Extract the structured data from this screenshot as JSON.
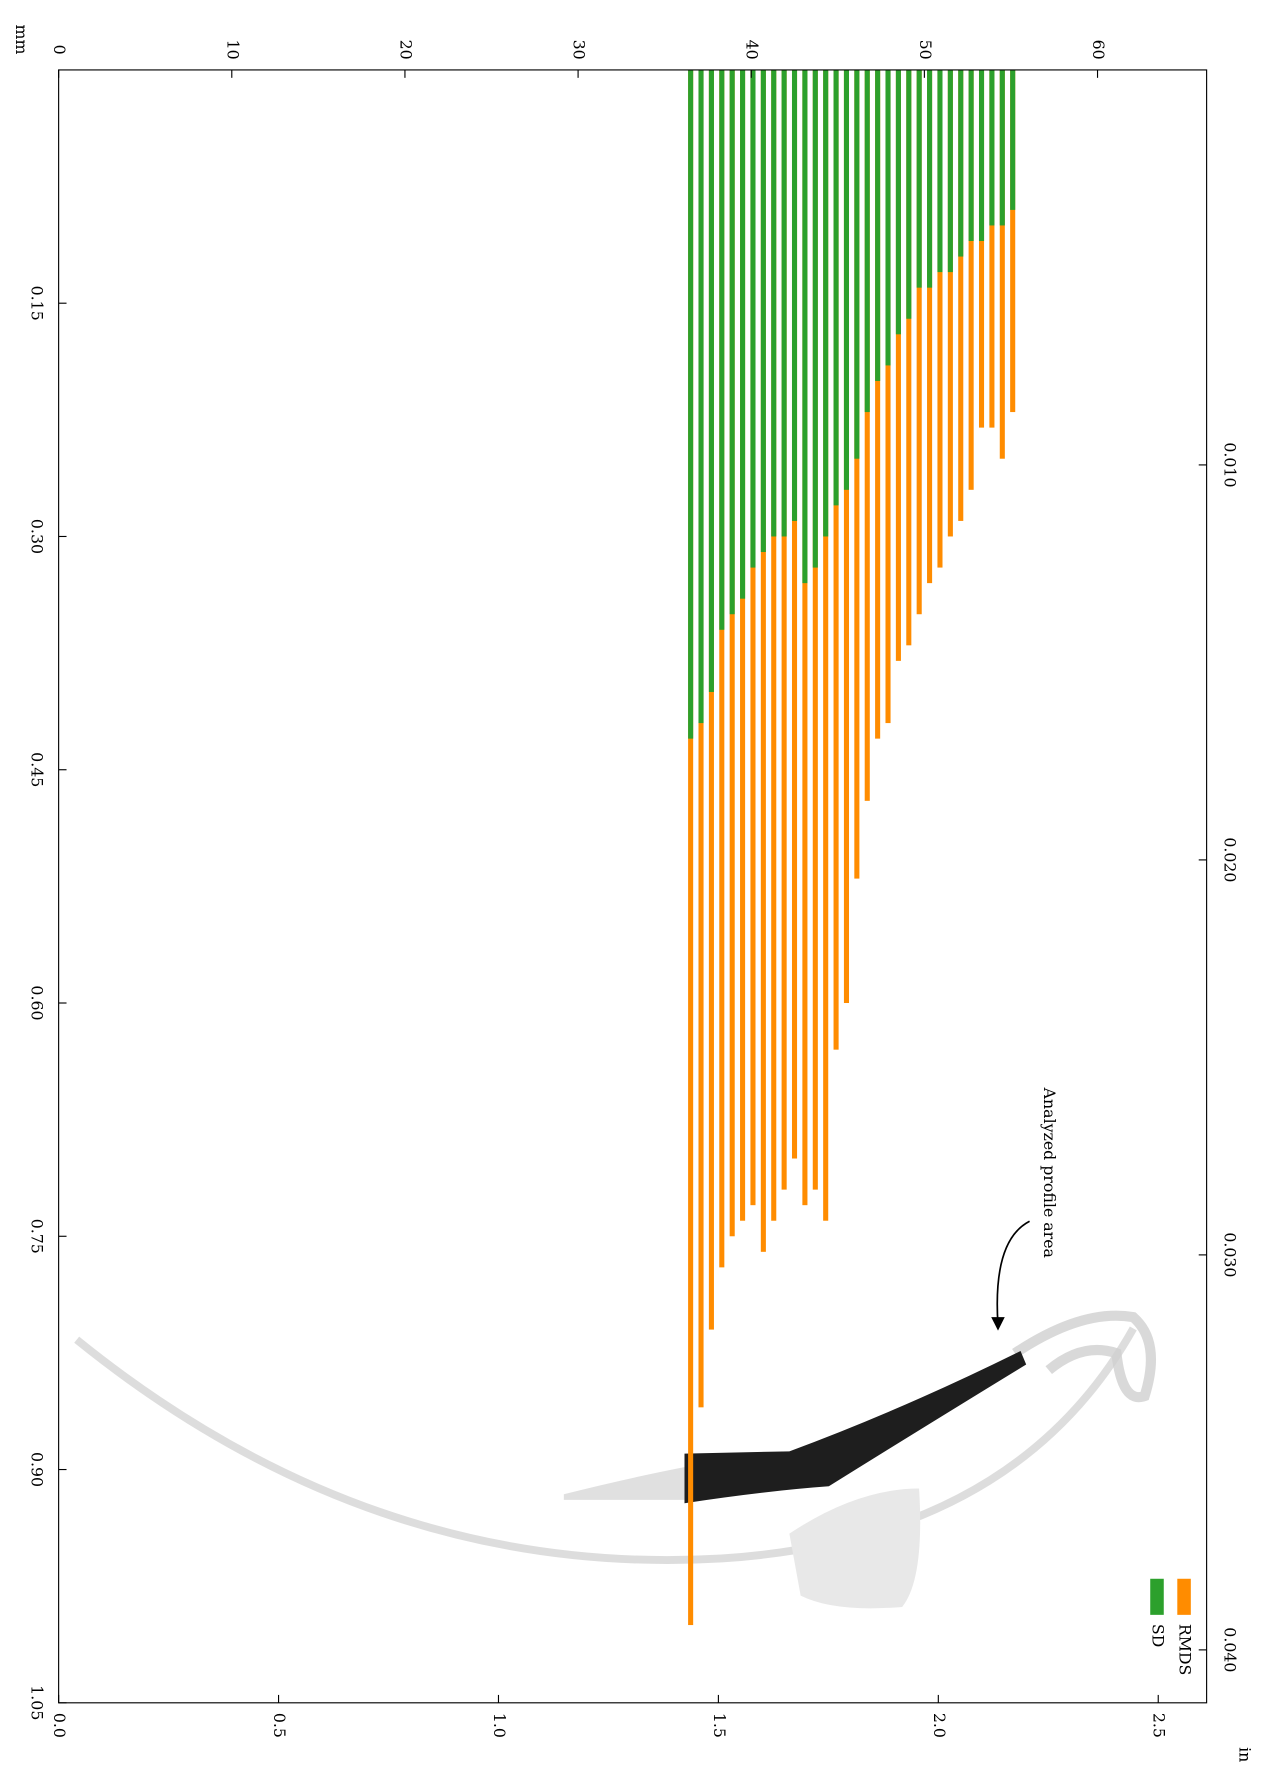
{
  "chart_data": {
    "type": "bar",
    "x_axis_label": "mm",
    "x2_axis_label": "in",
    "annotation": "Analyzed profile area",
    "x": [
      36.5,
      37.1,
      37.7,
      38.3,
      38.9,
      39.5,
      40.1,
      40.7,
      41.3,
      41.9,
      42.5,
      43.1,
      43.7,
      44.3,
      44.9,
      45.5,
      46.1,
      46.7,
      47.3,
      47.9,
      48.5,
      49.1,
      49.7,
      50.3,
      50.9,
      51.5,
      52.1,
      52.7,
      53.3,
      53.9,
      54.5,
      55.1
    ],
    "series": [
      {
        "name": "RMDS",
        "color": "#ff8c00",
        "values": [
          1.0,
          0.86,
          0.81,
          0.77,
          0.75,
          0.74,
          0.73,
          0.76,
          0.74,
          0.72,
          0.7,
          0.73,
          0.72,
          0.74,
          0.63,
          0.6,
          0.52,
          0.47,
          0.43,
          0.42,
          0.38,
          0.37,
          0.35,
          0.33,
          0.32,
          0.3,
          0.29,
          0.27,
          0.23,
          0.23,
          0.25,
          0.22
        ]
      },
      {
        "name": "SD",
        "color": "#2ca02c",
        "values": [
          0.43,
          0.42,
          0.4,
          0.36,
          0.35,
          0.34,
          0.32,
          0.31,
          0.3,
          0.3,
          0.29,
          0.33,
          0.32,
          0.3,
          0.28,
          0.27,
          0.25,
          0.22,
          0.2,
          0.19,
          0.17,
          0.16,
          0.14,
          0.14,
          0.13,
          0.13,
          0.12,
          0.11,
          0.11,
          0.1,
          0.1,
          0.09
        ]
      }
    ],
    "xlim": [
      0,
      66.3
    ],
    "xticks": [
      0,
      10,
      20,
      30,
      40,
      50,
      60
    ],
    "ylim": [
      0,
      1.05
    ],
    "yticks": [
      0.15,
      {
        "value": 0.3,
        "label": "0.30"
      },
      0.45,
      {
        "value": 0.6,
        "label": "0.60"
      },
      0.75,
      {
        "value": 0.9,
        "label": "0.90"
      },
      1.05
    ],
    "x2lim": [
      0,
      2.61
    ],
    "x2ticks": [
      {
        "value": 0,
        "label": "0.0"
      },
      0.5,
      {
        "value": 1,
        "label": "1.0"
      },
      1.5,
      {
        "value": 2,
        "label": "2.0"
      },
      2.5
    ],
    "y2lim": [
      0,
      0.04134
    ],
    "y2ticks": [
      {
        "value": 0.01,
        "label": "0.010"
      },
      {
        "value": 0.02,
        "label": "0.020"
      },
      {
        "value": 0.03,
        "label": "0.030"
      },
      {
        "value": 0.04,
        "label": "0.040"
      }
    ],
    "legend": "bottom-right"
  }
}
